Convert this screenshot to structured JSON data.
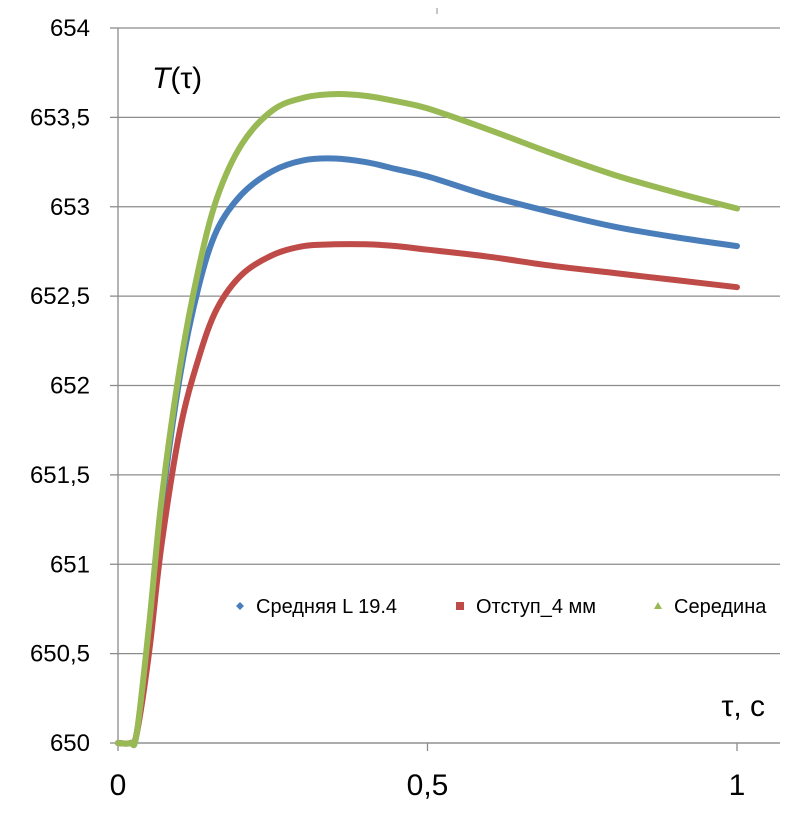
{
  "chart_data": {
    "type": "line",
    "ylabel_prefix": "T",
    "ylabel_arg": "(τ)",
    "xlabel": "τ, с",
    "xlim": [
      0,
      1
    ],
    "ylim": [
      650,
      654
    ],
    "x_ticks": [
      "0",
      "0,5",
      "1"
    ],
    "y_ticks": [
      "650",
      "650,5",
      "651",
      "651,5",
      "652",
      "652,5",
      "653",
      "653,5",
      "654"
    ],
    "grid": "horizontal",
    "legend_position": "inside-bottom",
    "series": [
      {
        "name": "Средняя L 19.4",
        "color": "#4a7ebb",
        "marker": "diamond",
        "points": [
          [
            0,
            650
          ],
          [
            0.02,
            650
          ],
          [
            0.03,
            650.05
          ],
          [
            0.05,
            650.6
          ],
          [
            0.07,
            651.3
          ],
          [
            0.1,
            652.05
          ],
          [
            0.13,
            652.55
          ],
          [
            0.16,
            652.87
          ],
          [
            0.2,
            653.07
          ],
          [
            0.25,
            653.2
          ],
          [
            0.3,
            653.26
          ],
          [
            0.35,
            653.27
          ],
          [
            0.4,
            653.25
          ],
          [
            0.45,
            653.21
          ],
          [
            0.5,
            653.17
          ],
          [
            0.6,
            653.06
          ],
          [
            0.7,
            652.97
          ],
          [
            0.8,
            652.89
          ],
          [
            0.9,
            652.83
          ],
          [
            1.0,
            652.78
          ]
        ]
      },
      {
        "name": "Отступ_4 мм",
        "color": "#be4b48",
        "marker": "square",
        "points": [
          [
            0,
            650
          ],
          [
            0.02,
            650
          ],
          [
            0.03,
            650.05
          ],
          [
            0.05,
            650.5
          ],
          [
            0.07,
            651.1
          ],
          [
            0.1,
            651.75
          ],
          [
            0.13,
            652.15
          ],
          [
            0.16,
            652.43
          ],
          [
            0.2,
            652.62
          ],
          [
            0.25,
            652.73
          ],
          [
            0.3,
            652.78
          ],
          [
            0.35,
            652.79
          ],
          [
            0.4,
            652.79
          ],
          [
            0.45,
            652.78
          ],
          [
            0.5,
            652.76
          ],
          [
            0.6,
            652.72
          ],
          [
            0.7,
            652.67
          ],
          [
            0.8,
            652.63
          ],
          [
            0.9,
            652.59
          ],
          [
            1.0,
            652.55
          ]
        ]
      },
      {
        "name": "Середина",
        "color": "#98b954",
        "marker": "triangle",
        "points": [
          [
            0,
            650
          ],
          [
            0.02,
            650
          ],
          [
            0.03,
            650.05
          ],
          [
            0.05,
            650.65
          ],
          [
            0.07,
            651.35
          ],
          [
            0.1,
            652.1
          ],
          [
            0.13,
            652.65
          ],
          [
            0.16,
            653.05
          ],
          [
            0.2,
            653.35
          ],
          [
            0.25,
            653.54
          ],
          [
            0.3,
            653.61
          ],
          [
            0.35,
            653.63
          ],
          [
            0.4,
            653.62
          ],
          [
            0.45,
            653.59
          ],
          [
            0.5,
            653.55
          ],
          [
            0.6,
            653.43
          ],
          [
            0.7,
            653.3
          ],
          [
            0.8,
            653.18
          ],
          [
            0.9,
            653.08
          ],
          [
            1.0,
            652.99
          ]
        ]
      }
    ]
  }
}
